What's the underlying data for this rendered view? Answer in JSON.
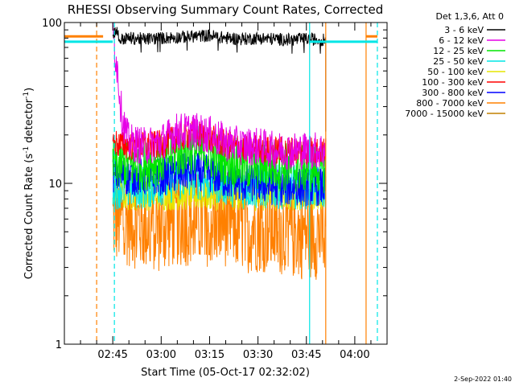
{
  "chart_data": {
    "type": "line",
    "title": "RHESSI Observing Summary Count Rates, Corrected",
    "xlabel": "Start Time (05-Oct-17 02:32:02)",
    "ylabel_parts": {
      "main": "Corrected Count Rate (s",
      "sup1": "-1",
      "mid": " detector",
      "sup2": "-1",
      "end": ")"
    },
    "yscale": "log",
    "ylim": [
      1,
      100
    ],
    "y_ticks": [
      {
        "v": 1,
        "label": "1"
      },
      {
        "v": 10,
        "label": "10"
      },
      {
        "v": 100,
        "label": "100"
      }
    ],
    "xlim_minutes": [
      -15,
      85
    ],
    "x_ticks": [
      {
        "m": 0,
        "label": "02:45"
      },
      {
        "m": 15,
        "label": "03:00"
      },
      {
        "m": 30,
        "label": "03:15"
      },
      {
        "m": 45,
        "label": "03:30"
      },
      {
        "m": 60,
        "label": "03:45"
      },
      {
        "m": 75,
        "label": "04:00"
      }
    ],
    "legend_header": "Det 1,3,6, Att 0",
    "series": [
      {
        "name": "3 - 6 keV",
        "color": "#000000",
        "values": [
          [
            0,
            82
          ],
          [
            1,
            92
          ],
          [
            2,
            78
          ],
          [
            5,
            80
          ],
          [
            10,
            79
          ],
          [
            15,
            80
          ],
          [
            20,
            81
          ],
          [
            25,
            82
          ],
          [
            30,
            83
          ],
          [
            35,
            80
          ],
          [
            40,
            79
          ],
          [
            45,
            80
          ],
          [
            50,
            79
          ],
          [
            55,
            78
          ],
          [
            60,
            79
          ],
          [
            65,
            78
          ],
          [
            66,
            78
          ]
        ]
      },
      {
        "name": "6 - 12 keV",
        "color": "#e600e6",
        "values": [
          [
            0,
            88
          ],
          [
            0.5,
            70
          ],
          [
            1,
            60
          ],
          [
            1.5,
            50
          ],
          [
            2,
            38
          ],
          [
            2.5,
            30
          ],
          [
            3,
            25
          ],
          [
            4,
            21
          ],
          [
            5,
            18
          ],
          [
            10,
            17
          ],
          [
            15,
            18
          ],
          [
            20,
            21
          ],
          [
            25,
            21
          ],
          [
            30,
            20
          ],
          [
            35,
            18
          ],
          [
            40,
            17
          ],
          [
            45,
            17
          ],
          [
            50,
            16
          ],
          [
            55,
            16
          ],
          [
            60,
            16
          ],
          [
            66,
            16
          ]
        ]
      },
      {
        "name": "12 - 25 keV",
        "color": "#00e600",
        "values": [
          [
            0,
            13
          ],
          [
            5,
            13
          ],
          [
            10,
            13
          ],
          [
            15,
            14
          ],
          [
            20,
            15.5
          ],
          [
            25,
            16.5
          ],
          [
            30,
            15
          ],
          [
            35,
            14
          ],
          [
            40,
            13
          ],
          [
            45,
            13
          ],
          [
            50,
            13
          ],
          [
            55,
            12.5
          ],
          [
            60,
            12.5
          ],
          [
            66,
            12.5
          ]
        ]
      },
      {
        "name": "25 - 50 keV",
        "color": "#00e6e6",
        "values": [
          [
            0,
            9.5
          ],
          [
            5,
            9.5
          ],
          [
            10,
            9.5
          ],
          [
            15,
            10
          ],
          [
            20,
            10.5
          ],
          [
            25,
            11
          ],
          [
            30,
            10.5
          ],
          [
            35,
            10
          ],
          [
            40,
            9.5
          ],
          [
            45,
            9.5
          ],
          [
            50,
            9.5
          ],
          [
            55,
            9.5
          ],
          [
            60,
            9.5
          ],
          [
            66,
            9.5
          ]
        ]
      },
      {
        "name": "50 - 100 keV",
        "color": "#e6e600",
        "values": [
          [
            0,
            8.5
          ],
          [
            5,
            8.5
          ],
          [
            10,
            8.5
          ],
          [
            15,
            8.5
          ],
          [
            20,
            8.5
          ],
          [
            25,
            8.5
          ],
          [
            30,
            8.5
          ],
          [
            35,
            8.5
          ],
          [
            40,
            8.5
          ],
          [
            45,
            8.5
          ],
          [
            50,
            8.5
          ],
          [
            55,
            8.5
          ],
          [
            60,
            8.5
          ],
          [
            66,
            8.5
          ]
        ]
      },
      {
        "name": "100 - 300 keV",
        "color": "#ff0000",
        "values": [
          [
            0,
            18
          ],
          [
            5,
            17
          ],
          [
            10,
            17
          ],
          [
            15,
            17.5
          ],
          [
            20,
            19
          ],
          [
            25,
            20.5
          ],
          [
            30,
            19
          ],
          [
            35,
            17.5
          ],
          [
            40,
            16.5
          ],
          [
            45,
            16.5
          ],
          [
            50,
            16
          ],
          [
            55,
            16
          ],
          [
            60,
            16
          ],
          [
            66,
            16
          ]
        ]
      },
      {
        "name": "300 - 800 keV",
        "color": "#0000ff",
        "values": [
          [
            0,
            11.5
          ],
          [
            5,
            11
          ],
          [
            10,
            11
          ],
          [
            15,
            11
          ],
          [
            20,
            11.5
          ],
          [
            25,
            12
          ],
          [
            30,
            11.5
          ],
          [
            35,
            10.5
          ],
          [
            40,
            10
          ],
          [
            45,
            10
          ],
          [
            50,
            9.5
          ],
          [
            55,
            9.5
          ],
          [
            60,
            9.5
          ],
          [
            66,
            9.5
          ]
        ]
      },
      {
        "name": "800 - 7000 keV",
        "color": "#ff8000",
        "values": [
          [
            0,
            6
          ],
          [
            5,
            6
          ],
          [
            10,
            5.5
          ],
          [
            15,
            5.5
          ],
          [
            20,
            6
          ],
          [
            25,
            6
          ],
          [
            30,
            6
          ],
          [
            35,
            6
          ],
          [
            40,
            5.5
          ],
          [
            45,
            5.5
          ],
          [
            50,
            5.5
          ],
          [
            55,
            5
          ],
          [
            60,
            5
          ],
          [
            66,
            5
          ]
        ]
      },
      {
        "name": "7000 - 15000 keV",
        "color": "#c08000",
        "values": []
      }
    ],
    "vlines": [
      {
        "m": -15.5,
        "color": "#00e6e6",
        "dash": false
      },
      {
        "m": -5,
        "color": "#ff8000",
        "dash": true
      },
      {
        "m": 0.5,
        "color": "#00e6e6",
        "dash": true
      },
      {
        "m": 61,
        "color": "#00e6e6",
        "dash": false
      },
      {
        "m": 66,
        "color": "#ff8000",
        "dash": false
      },
      {
        "m": 78.5,
        "color": "#ff8000",
        "dash": false
      },
      {
        "m": 82,
        "color": "#00e6e6",
        "dash": true
      }
    ],
    "hbars": [
      {
        "m0": -15,
        "m1": -3,
        "v": 82,
        "color": "#ff8000"
      },
      {
        "m0": -15,
        "m1": 0,
        "v": 76,
        "color": "#00e6e6"
      },
      {
        "m0": 61,
        "m1": 66,
        "v": 76,
        "color": "#00e6e6"
      },
      {
        "m0": 66,
        "m1": 82,
        "v": 76,
        "color": "#00e6e6"
      },
      {
        "m0": 78.5,
        "m1": 82,
        "v": 82,
        "color": "#ff8000"
      }
    ],
    "footer": "2-Sep-2022 01:40"
  }
}
